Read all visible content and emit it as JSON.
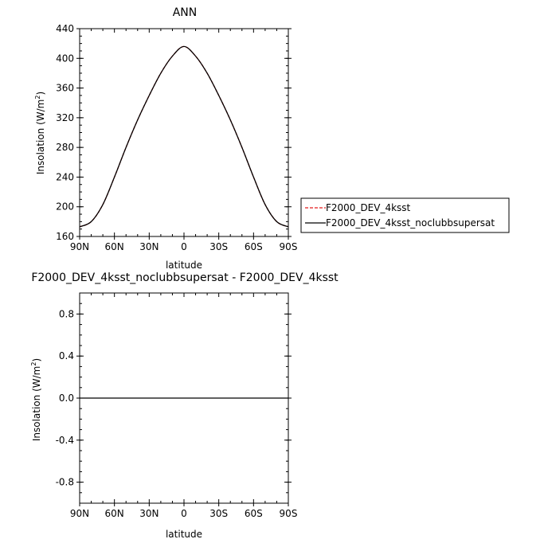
{
  "chart_data": [
    {
      "type": "line",
      "title": "ANN",
      "xlabel": "latitude",
      "ylabel": "Insolation (W/m",
      "ylabel_sup": "2",
      "ylabel_tail": ")",
      "xlim": [
        -90,
        90
      ],
      "ylim": [
        160,
        440
      ],
      "xticks": [
        -90,
        -60,
        -30,
        0,
        30,
        60,
        90
      ],
      "xtick_labels": [
        "90N",
        "60N",
        "30N",
        "0",
        "30S",
        "60S",
        "90S"
      ],
      "yticks": [
        160,
        200,
        240,
        280,
        320,
        360,
        400,
        440
      ],
      "ytick_labels": [
        "160",
        "200",
        "240",
        "280",
        "320",
        "360",
        "400",
        "440"
      ],
      "grid": false,
      "legend_position": "right",
      "x": [
        -90,
        -80,
        -70,
        -60,
        -50,
        -40,
        -30,
        -20,
        -10,
        0,
        10,
        20,
        30,
        40,
        50,
        60,
        70,
        80,
        90
      ],
      "series": [
        {
          "name": "F2000_DEV_4ksst",
          "color": "#e41a1c",
          "dash": "dashed",
          "values": [
            173,
            180,
            203,
            240,
            280,
            317,
            350,
            380,
            403,
            416,
            403,
            380,
            350,
            317,
            280,
            240,
            203,
            180,
            173
          ]
        },
        {
          "name": "F2000_DEV_4ksst_noclubbsupersat",
          "color": "#000000",
          "dash": "solid",
          "values": [
            173,
            180,
            203,
            240,
            280,
            317,
            350,
            380,
            403,
            416,
            403,
            380,
            350,
            317,
            280,
            240,
            203,
            180,
            173
          ]
        }
      ]
    },
    {
      "type": "line",
      "title": "F2000_DEV_4ksst_noclubbsupersat - F2000_DEV_4ksst",
      "xlabel": "latitude",
      "ylabel": "Insolation (W/m",
      "ylabel_sup": "2",
      "ylabel_tail": ")",
      "xlim": [
        -90,
        90
      ],
      "ylim": [
        -1,
        1
      ],
      "xticks": [
        -90,
        -60,
        -30,
        0,
        30,
        60,
        90
      ],
      "xtick_labels": [
        "90N",
        "60N",
        "30N",
        "0",
        "30S",
        "60S",
        "90S"
      ],
      "yticks": [
        -0.8,
        -0.4,
        0.0,
        0.4,
        0.8
      ],
      "ytick_labels": [
        "-0.8",
        "-0.4",
        "0.0",
        "0.4",
        "0.8"
      ],
      "grid": false,
      "x": [
        -90,
        90
      ],
      "series": [
        {
          "color": "#000000",
          "dash": "solid",
          "values": [
            0,
            0
          ]
        }
      ]
    }
  ]
}
